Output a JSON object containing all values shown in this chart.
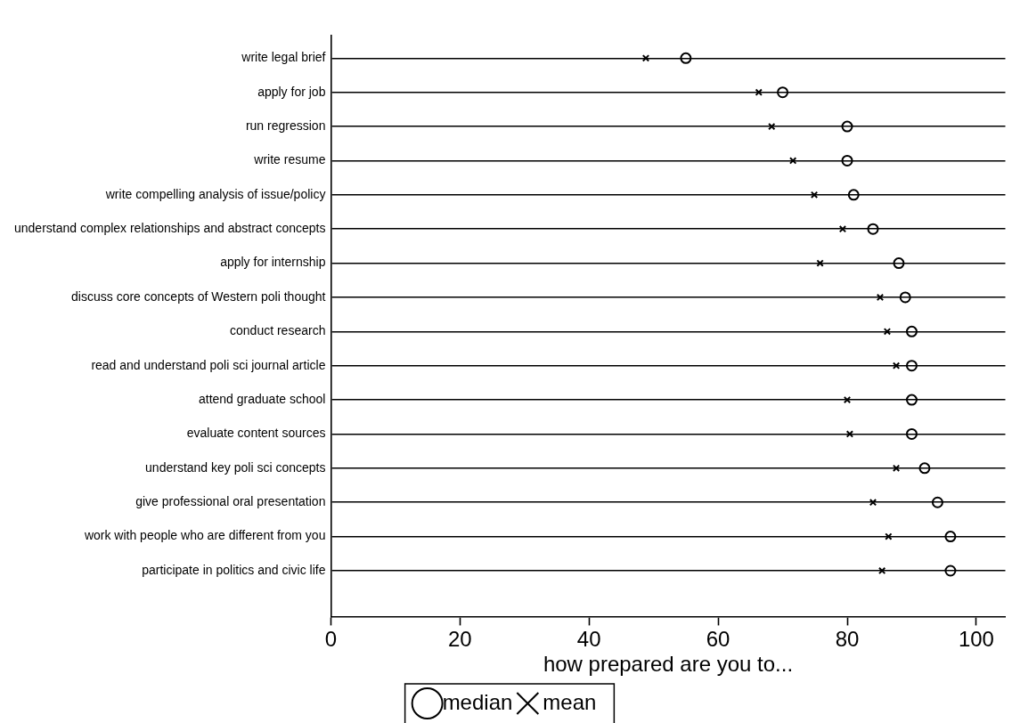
{
  "chart_data": {
    "type": "scatter",
    "orientation": "horizontal",
    "xlabel": "how prepared are you to...",
    "categories": [
      "write legal brief",
      "apply for job",
      "run regression",
      "write resume",
      "write compelling analysis of issue/policy",
      "understand complex relationships and abstract concepts",
      "apply for internship",
      "discuss core concepts of Western poli thought",
      "conduct research",
      "read and understand poli sci journal article",
      "attend graduate school",
      "evaluate content sources",
      "understand key poli sci concepts",
      "give professional oral presentation",
      "work with people who are different from you",
      "participate in politics and civic life"
    ],
    "series": [
      {
        "name": "median",
        "color": "#000000",
        "marker": "circle",
        "values": [
          55,
          70,
          80,
          80,
          81,
          84,
          88,
          89,
          90,
          90,
          90,
          90,
          92,
          94,
          96,
          96
        ]
      },
      {
        "name": "mean",
        "color": "#000000",
        "marker": "cross",
        "values": [
          48.8,
          66.3,
          68.3,
          71.6,
          74.9,
          79.3,
          75.8,
          85.1,
          86.2,
          87.6,
          80,
          80.4,
          87.6,
          84,
          86.4,
          85.4
        ]
      }
    ],
    "xlim": [
      0,
      104.5
    ],
    "xticks": [
      0,
      20,
      40,
      60,
      80,
      100
    ],
    "grid": "y",
    "legend": "bottom"
  }
}
